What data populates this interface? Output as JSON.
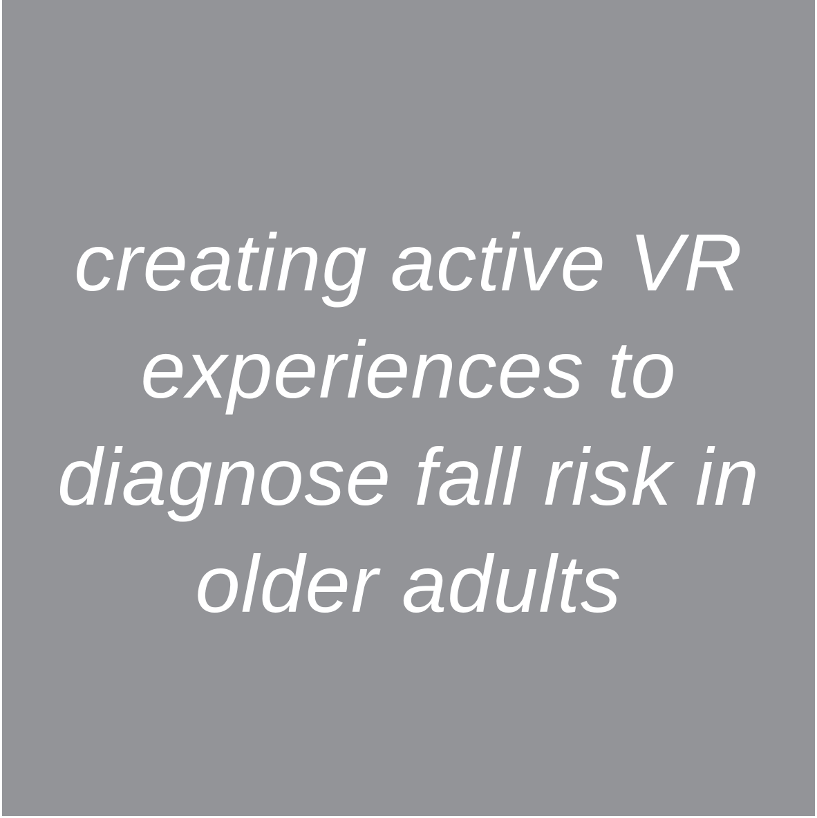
{
  "tile": {
    "background_color": "#939498",
    "text_color": "#ffffff",
    "lines": [
      "creating active VR",
      "experiences to",
      "diagnose fall risk in",
      "older adults"
    ]
  }
}
